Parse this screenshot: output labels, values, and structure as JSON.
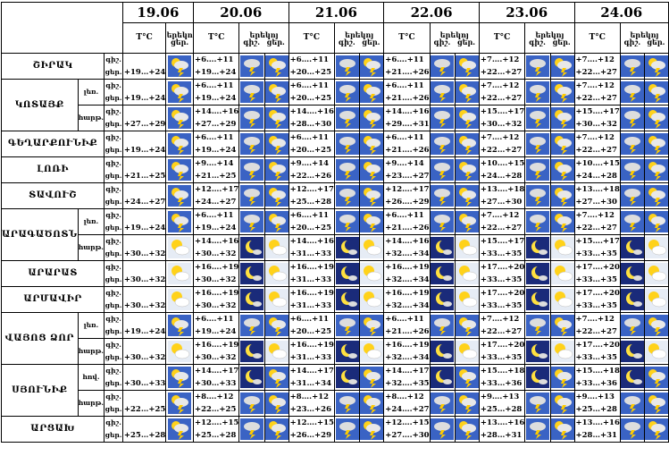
{
  "header": {
    "dates": [
      "19.06",
      "20.06",
      "21.06",
      "22.06",
      "23.06",
      "24.06"
    ],
    "tc": "T°C",
    "night_label": "երեկո",
    "nights_label": "երեկոյ",
    "night2_label": "գիշ.",
    "day_short": "ցեր.",
    "day2_label": "գիշ.",
    "day3_label": "ցեր."
  },
  "pp": {
    "a": "գիշ.",
    "b": "ցեր."
  },
  "rows": [
    {
      "region": "ՇԻՐԱԿ",
      "sub": "",
      "t": [
        [
          "",
          "+19…+24"
        ],
        [
          "+6….+11",
          "+19…+24"
        ],
        [
          "+6….+11",
          "+20…+25"
        ],
        [
          "+6….+11",
          "+21….+26"
        ],
        [
          "+7….+12",
          "+22…+27"
        ],
        [
          "+7….+12",
          "+22…+27"
        ]
      ],
      "ic": [
        "storm-sun",
        "storm-cloud",
        "storm-sun",
        "storm-cloud",
        "storm-sun",
        "storm-cloud",
        "storm-sun",
        "storm-cloud",
        "storm-sun",
        "storm-cloud",
        "storm-sun"
      ]
    },
    {
      "region": "ԿՈՏԱՅՔ",
      "sub": "լեռ.",
      "t": [
        [
          "",
          "+19…+24"
        ],
        [
          "+6….+11",
          "+19…+24"
        ],
        [
          "+6….+11",
          "+20…+25"
        ],
        [
          "+6….+11",
          "+21….+26"
        ],
        [
          "+7….+12",
          "+22…+27"
        ],
        [
          "+7….+12",
          "+22…+27"
        ]
      ],
      "ic": [
        "storm-sun",
        "storm-cloud",
        "storm-sun",
        "storm-cloud",
        "storm-sun",
        "storm-cloud",
        "storm-sun",
        "storm-cloud",
        "storm-sun",
        "storm-cloud",
        "storm-sun"
      ]
    },
    {
      "region": "",
      "sub": "հարթ.",
      "t": [
        [
          "",
          "+27…+29"
        ],
        [
          "+14….+16",
          "+27…+29"
        ],
        [
          "+14….+16",
          "+28…+30"
        ],
        [
          "+14….+16",
          "+29….+31"
        ],
        [
          "+15….+17",
          "+30…+32"
        ],
        [
          "+15….+17",
          "+30…+32"
        ]
      ],
      "ic": [
        "storm-sun",
        "storm-cloud",
        "storm-sun",
        "storm-cloud",
        "storm-sun",
        "storm-cloud",
        "storm-sun",
        "storm-cloud",
        "storm-sun",
        "storm-cloud",
        "storm-sun"
      ]
    },
    {
      "region": "ԳԵՂԱՐՔՈՒՆԻՔ",
      "sub": "",
      "t": [
        [
          "",
          "+19…+24"
        ],
        [
          "+6….+11",
          "+19…+24"
        ],
        [
          "+6….+11",
          "+20…+25"
        ],
        [
          "+6….+11",
          "+21….+26"
        ],
        [
          "+7….+12",
          "+22…+27"
        ],
        [
          "+7….+12",
          "+22…+27"
        ]
      ],
      "ic": [
        "storm-sun",
        "storm-cloud",
        "storm-sun",
        "storm-cloud",
        "storm-sun",
        "storm-cloud",
        "storm-sun",
        "storm-cloud",
        "storm-sun",
        "storm-cloud",
        "storm-sun"
      ]
    },
    {
      "region": "ԼՈՌԻ",
      "sub": "",
      "t": [
        [
          "",
          "+21…+25"
        ],
        [
          "+9….+14",
          "+21…+25"
        ],
        [
          "+9….+14",
          "+22…+26"
        ],
        [
          "+9….+14",
          "+23….+27"
        ],
        [
          "+10….+15",
          "+24…+28"
        ],
        [
          "+10….+15",
          "+24…+28"
        ]
      ],
      "ic": [
        "storm-sun",
        "storm-cloud",
        "storm-sun",
        "storm-cloud",
        "storm-sun",
        "storm-cloud",
        "storm-sun",
        "storm-cloud",
        "storm-sun",
        "storm-cloud",
        "storm-sun"
      ]
    },
    {
      "region": "ՏԱՎՈՒՇ",
      "sub": "",
      "t": [
        [
          "",
          "+24…+27"
        ],
        [
          "+12….+17",
          "+24…+27"
        ],
        [
          "+12….+17",
          "+25…+28"
        ],
        [
          "+12….+17",
          "+26….+29"
        ],
        [
          "+13….+18",
          "+27…+30"
        ],
        [
          "+13….+18",
          "+27…+30"
        ]
      ],
      "ic": [
        "storm-sun",
        "storm-cloud",
        "storm-sun",
        "storm-cloud",
        "storm-sun",
        "storm-cloud",
        "storm-sun",
        "storm-cloud",
        "storm-sun",
        "storm-cloud",
        "storm-sun"
      ]
    },
    {
      "region": "ԱՐԱԳԱԾՈՏՆ",
      "sub": "լեռ.",
      "t": [
        [
          "",
          "+19…+24"
        ],
        [
          "+6….+11",
          "+19…+24"
        ],
        [
          "+6….+11",
          "+20…+25"
        ],
        [
          "+6….+11",
          "+21….+26"
        ],
        [
          "+7….+12",
          "+22…+27"
        ],
        [
          "+7….+12",
          "+22…+27"
        ]
      ],
      "ic": [
        "storm-sun",
        "storm-cloud",
        "storm-sun",
        "storm-cloud",
        "storm-sun",
        "storm-cloud",
        "storm-sun",
        "storm-cloud",
        "storm-sun",
        "storm-cloud",
        "storm-sun"
      ]
    },
    {
      "region": "",
      "sub": "հարթ.",
      "t": [
        [
          "",
          "+30…+32"
        ],
        [
          "+14….+16",
          "+30…+32"
        ],
        [
          "+14….+16",
          "+31…+33"
        ],
        [
          "+14….+16",
          "+32….+34"
        ],
        [
          "+15….+17",
          "+33…+35"
        ],
        [
          "+15….+17",
          "+33…+35"
        ]
      ],
      "ic": [
        "sun-cloud",
        "moon",
        "sun-cloud",
        "moon",
        "sun-cloud",
        "moon",
        "sun-cloud",
        "moon",
        "sun-cloud",
        "moon",
        "sun-cloud"
      ]
    },
    {
      "region": "ԱՐԱՐԱՏ",
      "sub": "",
      "t": [
        [
          "",
          "+30…+32"
        ],
        [
          "+16….+19",
          "+30…+32"
        ],
        [
          "+16….+19",
          "+31…+33"
        ],
        [
          "+16….+19",
          "+32….+34"
        ],
        [
          "+17….+20",
          "+33…+35"
        ],
        [
          "+17….+20",
          "+33…+35"
        ]
      ],
      "ic": [
        "sun-cloud",
        "moon",
        "sun-cloud",
        "moon",
        "sun-cloud",
        "moon",
        "sun-cloud",
        "moon",
        "sun-cloud",
        "moon",
        "sun-cloud"
      ]
    },
    {
      "region": "ԱՐՄԱՎԻՐ",
      "sub": "",
      "t": [
        [
          "",
          "+30…+32"
        ],
        [
          "+16….+19",
          "+30…+32"
        ],
        [
          "+16….+19",
          "+31…+33"
        ],
        [
          "+16….+19",
          "+32….+34"
        ],
        [
          "+17….+20",
          "+33…+35"
        ],
        [
          "+17….+20",
          "+33…+35"
        ]
      ],
      "ic": [
        "sun-cloud",
        "moon",
        "sun-cloud",
        "moon",
        "sun-cloud",
        "moon",
        "sun-cloud",
        "moon",
        "sun-cloud",
        "moon",
        "sun-cloud"
      ]
    },
    {
      "region": "ՎԱՅՈՑ ՁՈՐ",
      "sub": "լեռ.",
      "t": [
        [
          "",
          "+19…+24"
        ],
        [
          "+6….+11",
          "+19…+24"
        ],
        [
          "+6….+11",
          "+20…+25"
        ],
        [
          "+6….+11",
          "+21….+26"
        ],
        [
          "+7….+12",
          "+22…+27"
        ],
        [
          "+7….+12",
          "+22…+27"
        ]
      ],
      "ic": [
        "storm-sun",
        "storm-cloud",
        "storm-sun",
        "storm-cloud",
        "storm-sun",
        "storm-cloud",
        "storm-sun",
        "storm-cloud",
        "storm-sun",
        "storm-cloud",
        "storm-sun"
      ]
    },
    {
      "region": "",
      "sub": "հարթ.",
      "t": [
        [
          "",
          "+30…+32"
        ],
        [
          "+16….+19",
          "+30…+32"
        ],
        [
          "+16….+19",
          "+31…+33"
        ],
        [
          "+16….+19",
          "+32….+34"
        ],
        [
          "+17….+20",
          "+33…+35"
        ],
        [
          "+17….+20",
          "+33…+35"
        ]
      ],
      "ic": [
        "sun-cloud",
        "moon",
        "sun-cloud",
        "moon",
        "sun-cloud",
        "moon",
        "sun-cloud",
        "moon",
        "sun-cloud",
        "moon",
        "sun-cloud"
      ]
    },
    {
      "region": "ՍՅՈՒՆԻՔ",
      "sub": "հով.",
      "t": [
        [
          "",
          "+30…+33"
        ],
        [
          "+14….+17",
          "+30…+33"
        ],
        [
          "+14….+17",
          "+31…+34"
        ],
        [
          "+14….+17",
          "+32….+35"
        ],
        [
          "+15….+18",
          "+33…+36"
        ],
        [
          "+15….+18",
          "+33…+36"
        ]
      ],
      "ic": [
        "storm-sun",
        "moon",
        "storm-sun",
        "moon",
        "storm-sun",
        "moon",
        "storm-sun",
        "moon",
        "storm-sun",
        "moon",
        "storm-sun"
      ]
    },
    {
      "region": "",
      "sub": "հարթ.",
      "t": [
        [
          "",
          "+22…+25"
        ],
        [
          "+8….+12",
          "+22…+25"
        ],
        [
          "+8….+12",
          "+23…+26"
        ],
        [
          "+8….+12",
          "+24….+27"
        ],
        [
          "+9….+13",
          "+25…+28"
        ],
        [
          "+9….+13",
          "+25…+28"
        ]
      ],
      "ic": [
        "storm-sun",
        "storm-cloud",
        "storm-sun",
        "storm-cloud",
        "storm-sun",
        "storm-cloud",
        "storm-sun",
        "storm-cloud",
        "storm-sun",
        "storm-cloud",
        "storm-sun"
      ]
    },
    {
      "region": "ԱՐՑԱԽ",
      "sub": "",
      "t": [
        [
          "",
          "+25…+28"
        ],
        [
          "+12….+15",
          "+25…+28"
        ],
        [
          "+12….+15",
          "+26…+29"
        ],
        [
          "+12….+15",
          "+27….+30"
        ],
        [
          "+13….+16",
          "+28…+31"
        ],
        [
          "+13….+16",
          "+28…+31"
        ]
      ],
      "ic": [
        "storm-sun",
        "storm-cloud",
        "storm-sun",
        "storm-cloud",
        "storm-sun",
        "storm-cloud",
        "storm-sun",
        "storm-cloud",
        "storm-sun",
        "storm-cloud",
        "storm-sun"
      ]
    }
  ],
  "colors": {
    "sky": "#3a63c4",
    "sun": "#ffd21a",
    "cloud": "#ffffff",
    "bolt": "#ffcc00",
    "night": "#1a2b7a"
  }
}
